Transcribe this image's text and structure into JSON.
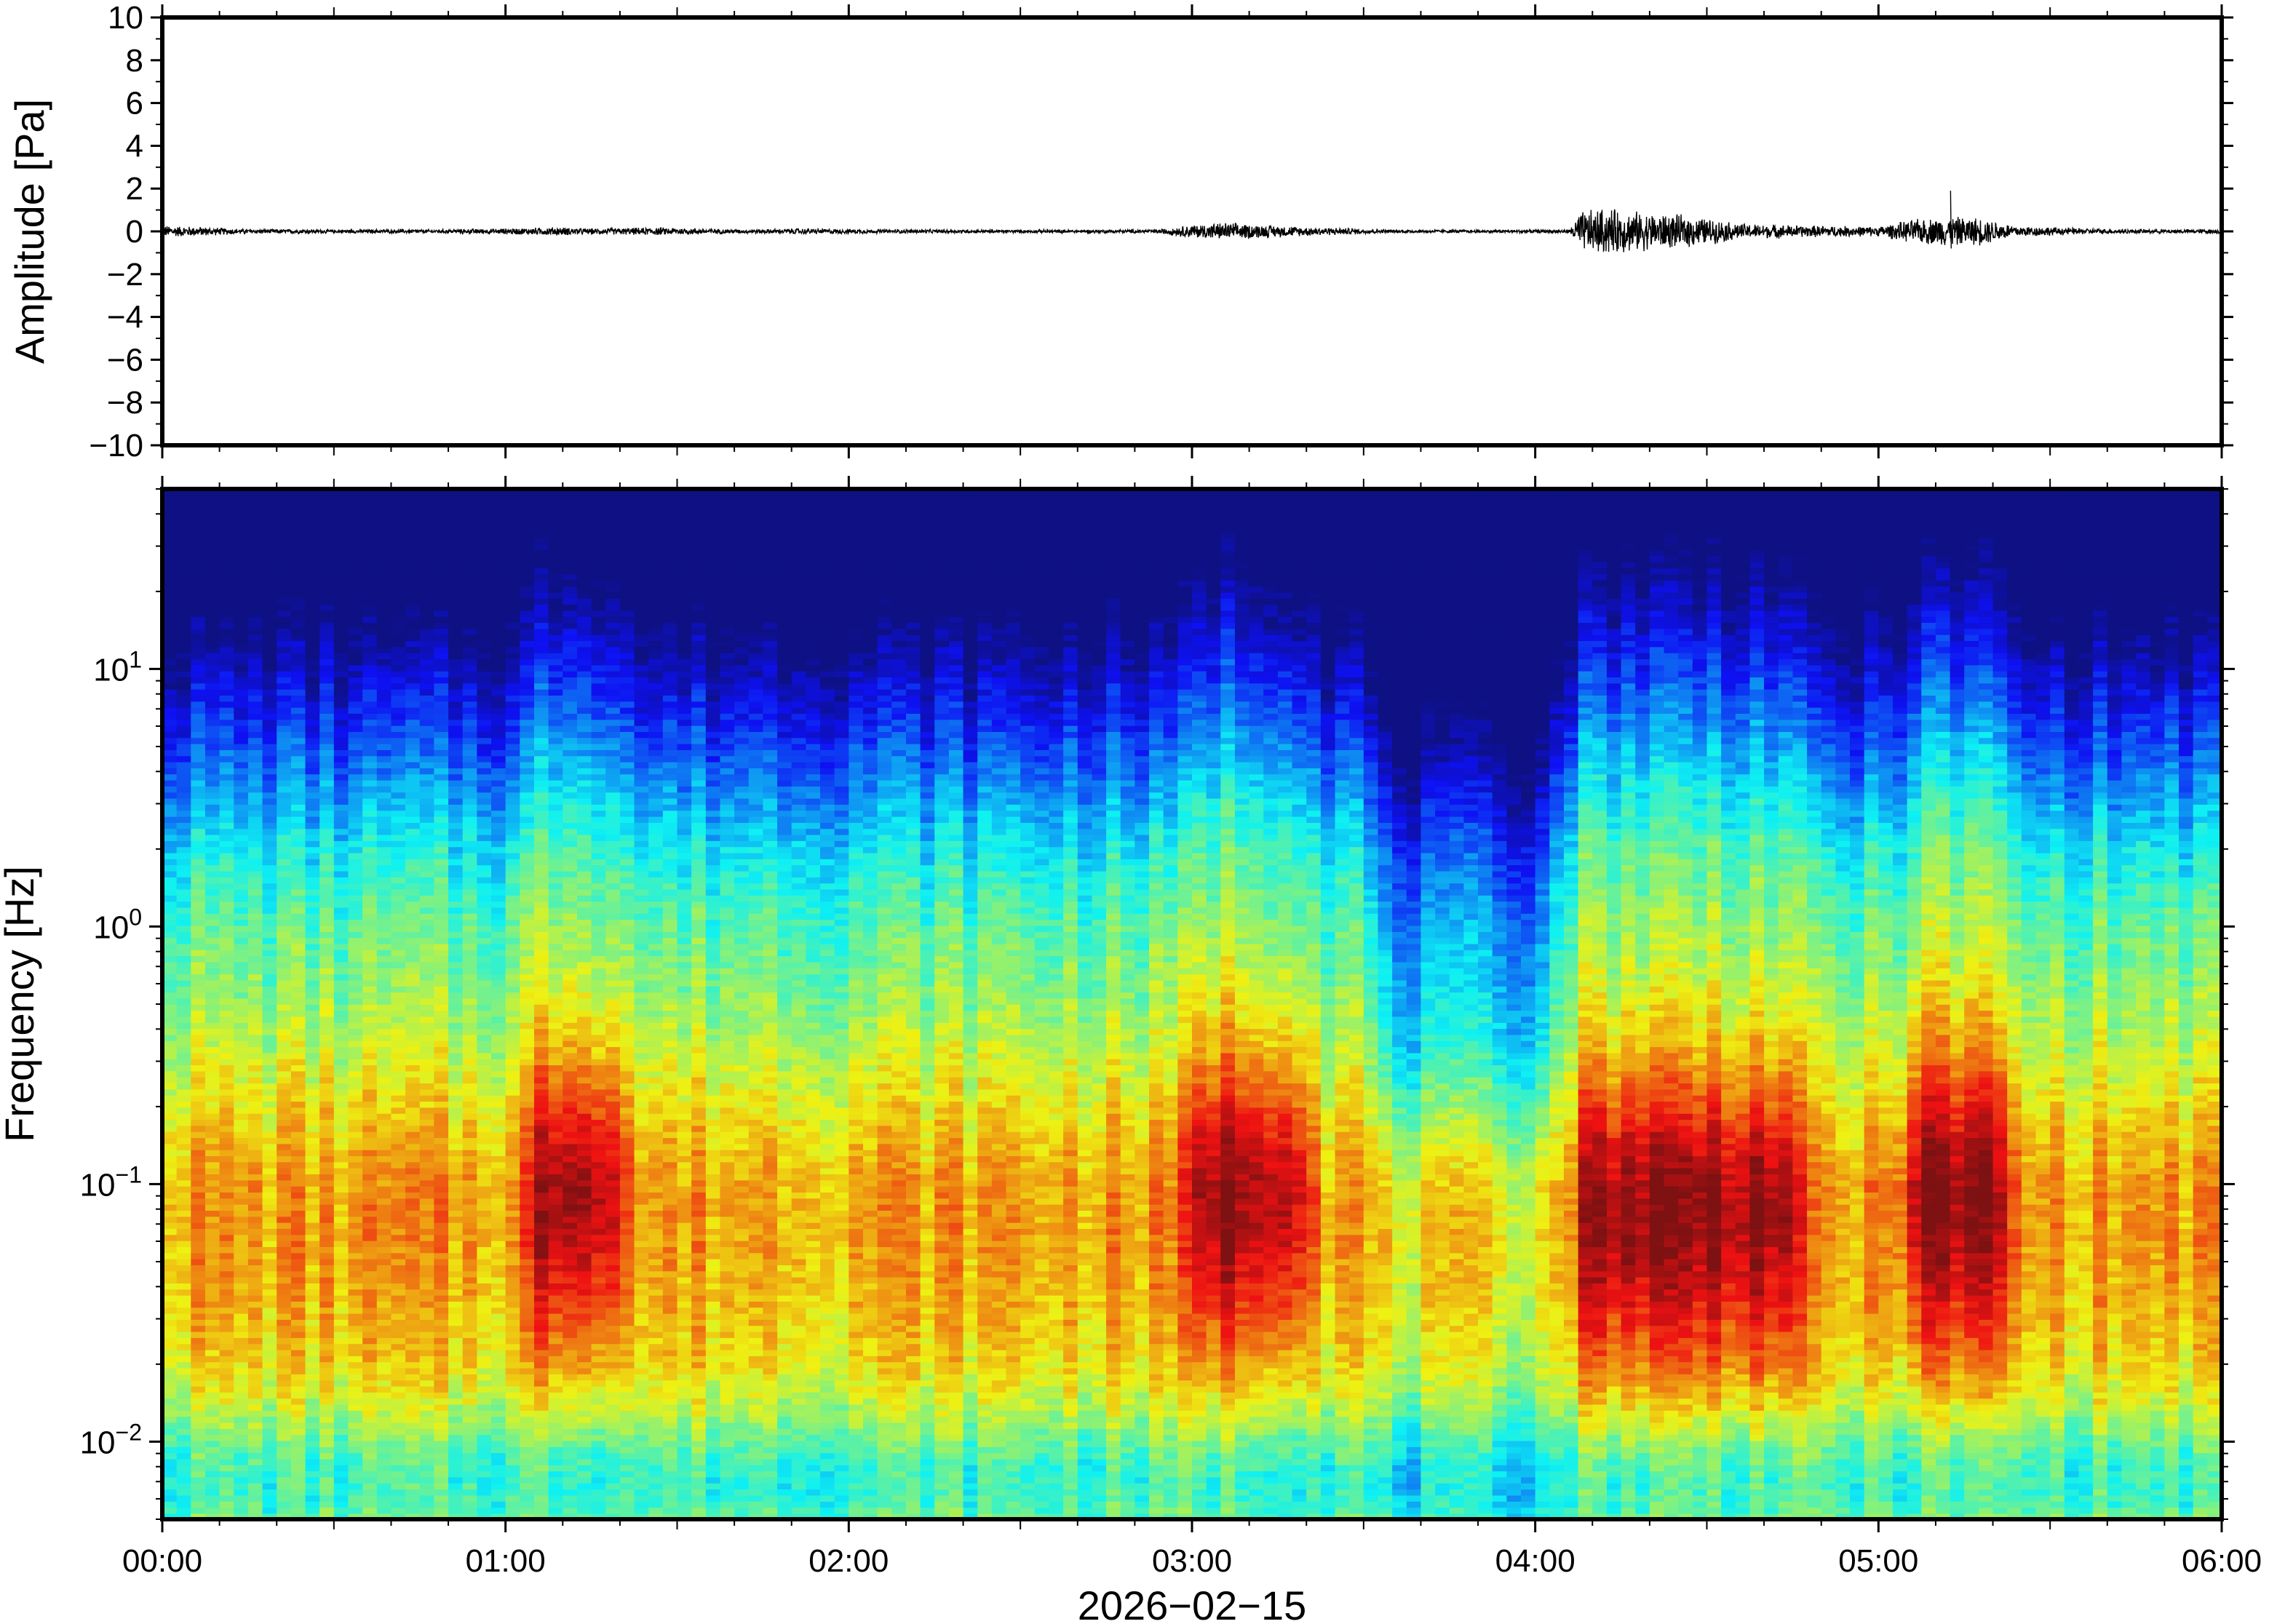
{
  "chart_data": [
    {
      "type": "line",
      "panel": "waveform",
      "title": "",
      "xlabel": "",
      "ylabel": "Amplitude [Pa]",
      "ylim": [
        -10,
        10
      ],
      "yticks": [
        {
          "value": 10,
          "label": "10"
        },
        {
          "value": 8,
          "label": "8"
        },
        {
          "value": 6,
          "label": "6"
        },
        {
          "value": 4,
          "label": "4"
        },
        {
          "value": 2,
          "label": "2"
        },
        {
          "value": 0,
          "label": "0"
        },
        {
          "value": -2,
          "label": "−2"
        },
        {
          "value": -4,
          "label": "−4"
        },
        {
          "value": -6,
          "label": "−6"
        },
        {
          "value": -8,
          "label": "−8"
        },
        {
          "value": -10,
          "label": "−10"
        }
      ],
      "xlim": [
        "00:00",
        "06:00"
      ],
      "envelope_hours": [
        0.0,
        0.1,
        0.25,
        0.5,
        0.8,
        1.0,
        1.15,
        1.25,
        1.45,
        1.7,
        1.85,
        2.1,
        2.5,
        2.9,
        3.0,
        3.1,
        3.3,
        3.6,
        3.9,
        4.1,
        4.13,
        4.2,
        4.3,
        4.45,
        4.6,
        4.8,
        5.0,
        5.1,
        5.2,
        5.3,
        5.4,
        5.6,
        5.8,
        6.0
      ],
      "envelope_amplitude_pa": [
        0.3,
        0.25,
        0.12,
        0.1,
        0.1,
        0.15,
        0.22,
        0.15,
        0.2,
        0.1,
        0.15,
        0.1,
        0.08,
        0.1,
        0.35,
        0.45,
        0.25,
        0.08,
        0.08,
        0.1,
        1.0,
        1.2,
        1.0,
        0.8,
        0.4,
        0.3,
        0.25,
        0.6,
        0.75,
        0.7,
        0.3,
        0.15,
        0.1,
        0.12
      ]
    },
    {
      "type": "heatmap",
      "panel": "spectrogram",
      "title": "",
      "xlabel": "2026−02−15",
      "ylabel": "Frequency [Hz]",
      "yscale": "log",
      "ylim": [
        0.005,
        50
      ],
      "yticks": [
        {
          "base": "10",
          "exp": "1",
          "value": 10
        },
        {
          "base": "10",
          "exp": "0",
          "value": 1
        },
        {
          "base": "10",
          "exp": "−1",
          "value": 0.1
        },
        {
          "base": "10",
          "exp": "−2",
          "value": 0.01
        }
      ],
      "colormap": "jet",
      "xlim": [
        "00:00",
        "06:00"
      ],
      "xticks": [
        {
          "hour": 0,
          "label": "00:00"
        },
        {
          "hour": 1,
          "label": "01:00"
        },
        {
          "hour": 2,
          "label": "02:00"
        },
        {
          "hour": 3,
          "label": "03:00"
        },
        {
          "hour": 4,
          "label": "04:00"
        },
        {
          "hour": 5,
          "label": "05:00"
        },
        {
          "hour": 6,
          "label": "06:00"
        }
      ],
      "energy_peaks": [
        {
          "start": "04:08",
          "end": "04:45",
          "peak_hz": 0.08
        },
        {
          "start": "05:05",
          "end": "05:22",
          "peak_hz": 0.1
        },
        {
          "start": "03:00",
          "end": "03:20",
          "peak_hz": 0.1
        },
        {
          "start": "01:05",
          "end": "01:20",
          "peak_hz": 0.1
        }
      ],
      "quiet_interval": {
        "start": "03:30",
        "end": "04:05"
      }
    }
  ]
}
